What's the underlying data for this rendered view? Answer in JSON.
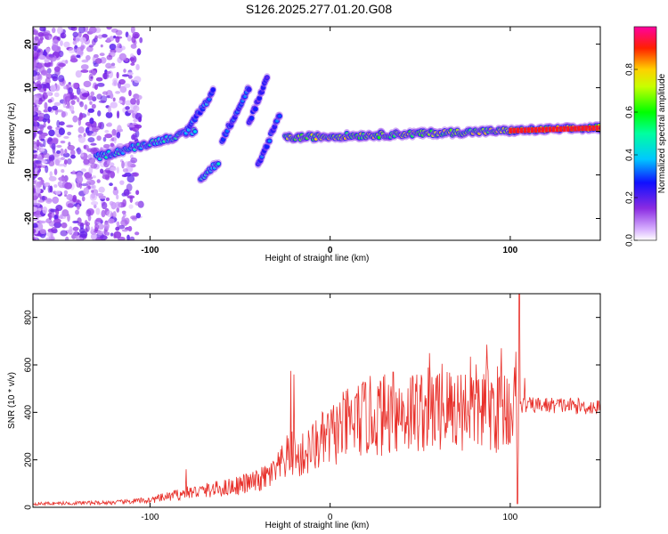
{
  "figure": {
    "title": "S126.2025.277.01.20.G08"
  },
  "chart_data": [
    {
      "type": "heatmap",
      "name": "spectrogram",
      "xlabel": "Height of straight line (km)",
      "ylabel": "Frequency (Hz)",
      "xlim": [
        -165,
        150
      ],
      "ylim": [
        -25,
        24
      ],
      "x_ticks": [
        -100,
        0,
        100
      ],
      "x_tick_labels": [
        "-100",
        "0",
        "100"
      ],
      "y_ticks": [
        -20,
        -10,
        0,
        10,
        20
      ],
      "y_tick_labels": [
        "-20",
        "-10",
        "0",
        "10",
        "20"
      ],
      "colorbar": {
        "label": "Normalized spectral amplitude",
        "range": [
          0,
          1
        ],
        "ticks": [
          0.0,
          0.2,
          0.4,
          0.6,
          0.8
        ],
        "tick_labels": [
          "0.0",
          "0.2",
          "0.4",
          "0.6",
          "0.8"
        ],
        "colormap": "rainbow (white-violet-blue-cyan-green-yellow-red-magenta)"
      },
      "features": [
        {
          "name": "main-tone",
          "x_range": [
            -25,
            150
          ],
          "freq_start": -1.5,
          "freq_end": 0.8,
          "amplitude": 0.7
        },
        {
          "name": "early-trace",
          "x_range": [
            -130,
            -75
          ],
          "freq_start": -6,
          "freq_end": 0,
          "amplitude": 0.45
        },
        {
          "name": "rising-branch-1",
          "x_range": [
            -80,
            -65
          ],
          "freq_start": 0,
          "freq_end": 9,
          "amplitude": 0.35
        },
        {
          "name": "rising-branch-2",
          "x_range": [
            -60,
            -45
          ],
          "freq_start": -2,
          "freq_end": 10,
          "amplitude": 0.3
        },
        {
          "name": "rising-branch-3",
          "x_range": [
            -45,
            -35
          ],
          "freq_start": 2,
          "freq_end": 12,
          "amplitude": 0.25
        },
        {
          "name": "falling-branch",
          "x_range": [
            -40,
            -28
          ],
          "freq_start": -8,
          "freq_end": 4,
          "amplitude": 0.3
        },
        {
          "name": "side-blob",
          "x_range": [
            -72,
            -62
          ],
          "freq_start": -11,
          "freq_end": -7,
          "amplitude": 0.4
        }
      ]
    },
    {
      "type": "line",
      "name": "snr",
      "xlabel": "Height of straight line (km)",
      "ylabel": "SNR (10 * v/v)",
      "xlim": [
        -165,
        150
      ],
      "ylim": [
        0,
        900
      ],
      "x_ticks": [
        -100,
        0,
        100
      ],
      "x_tick_labels": [
        "-100",
        "0",
        "100"
      ],
      "y_ticks": [
        0,
        200,
        400,
        600,
        800
      ],
      "y_tick_labels": [
        "0",
        "200",
        "400",
        "600",
        "800"
      ],
      "color": "#e8302a",
      "envelope": {
        "x": [
          -165,
          -120,
          -100,
          -80,
          -60,
          -40,
          -30,
          -22,
          -18,
          -10,
          0,
          10,
          20,
          30,
          40,
          50,
          60,
          70,
          80,
          90,
          100,
          105,
          110,
          120,
          130,
          140,
          150
        ],
        "y": [
          15,
          20,
          30,
          60,
          80,
          110,
          150,
          230,
          200,
          250,
          300,
          350,
          380,
          390,
          400,
          410,
          410,
          420,
          420,
          415,
          420,
          430,
          430,
          430,
          430,
          425,
          420
        ]
      },
      "spikes": [
        {
          "x": -80,
          "y": 160
        },
        {
          "x": -22,
          "y": 575
        },
        {
          "x": -20,
          "y": 560
        },
        {
          "x": -5,
          "y": 350
        },
        {
          "x": 15,
          "y": 480
        },
        {
          "x": 35,
          "y": 570
        },
        {
          "x": 55,
          "y": 650
        },
        {
          "x": 62,
          "y": 605
        },
        {
          "x": 78,
          "y": 635
        },
        {
          "x": 87,
          "y": 685
        },
        {
          "x": 95,
          "y": 670
        },
        {
          "x": 103,
          "y": 655
        },
        {
          "x": 105,
          "y": 900
        },
        {
          "x": 108,
          "y": 545
        }
      ]
    }
  ]
}
